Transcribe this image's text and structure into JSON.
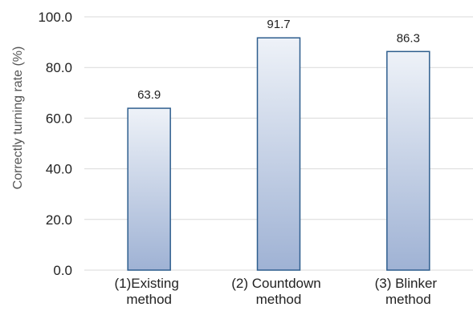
{
  "chart_data": {
    "type": "bar",
    "title": "",
    "xlabel": "",
    "ylabel": "Correctly turning rate (%)",
    "ylim": [
      0,
      100
    ],
    "yticks": [
      "0.0",
      "20.0",
      "40.0",
      "60.0",
      "80.0",
      "100.0"
    ],
    "categories": [
      [
        "(1)Existing",
        "method"
      ],
      [
        "(2) Countdown",
        "method"
      ],
      [
        "(3) Blinker",
        "method"
      ]
    ],
    "values": [
      63.9,
      91.7,
      86.3
    ],
    "data_labels": [
      "63.9",
      "91.7",
      "86.3"
    ],
    "grid": true,
    "legend": "none",
    "colors": {
      "bar_top": "#eef2f8",
      "bar_bottom": "#9fb2d4",
      "bar_stroke": "#2e5e8e",
      "grid": "#d9d9d9"
    }
  }
}
